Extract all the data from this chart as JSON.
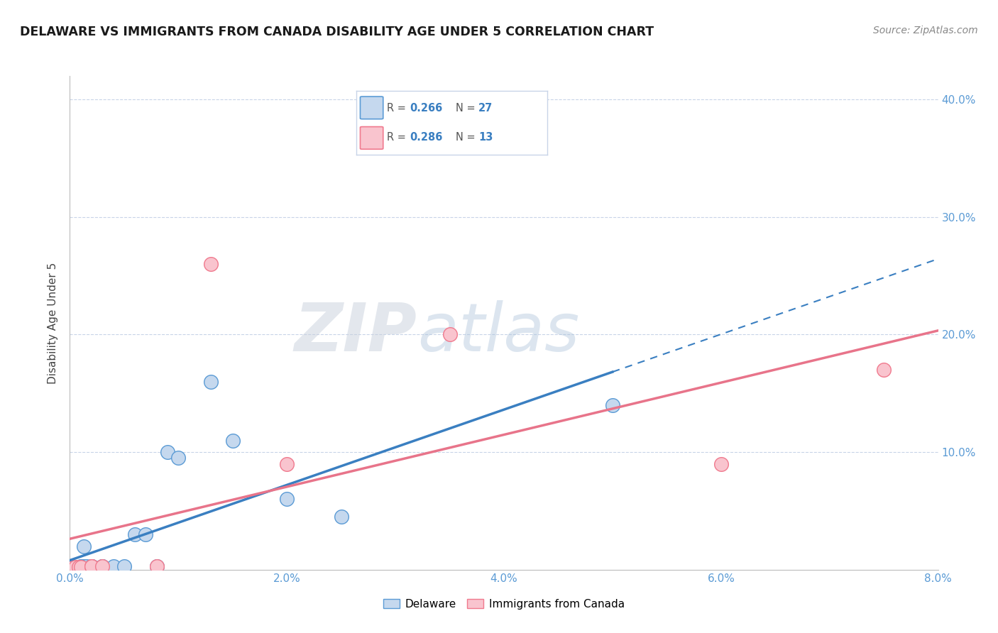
{
  "title": "DELAWARE VS IMMIGRANTS FROM CANADA DISABILITY AGE UNDER 5 CORRELATION CHART",
  "source": "Source: ZipAtlas.com",
  "ylabel": "Disability Age Under 5",
  "xmin": 0.0,
  "xmax": 0.08,
  "ymin": 0.0,
  "ymax": 0.42,
  "xtick_positions": [
    0.0,
    0.01,
    0.02,
    0.03,
    0.04,
    0.05,
    0.06,
    0.07,
    0.08
  ],
  "xtick_labels": [
    "0.0%",
    "",
    "2.0%",
    "",
    "4.0%",
    "",
    "6.0%",
    "",
    "8.0%"
  ],
  "ytick_positions": [
    0.0,
    0.1,
    0.2,
    0.3,
    0.4
  ],
  "ytick_labels": [
    "",
    "10.0%",
    "20.0%",
    "30.0%",
    "40.0%"
  ],
  "delaware_x": [
    0.0003,
    0.0005,
    0.0007,
    0.0008,
    0.001,
    0.001,
    0.0012,
    0.0013,
    0.0015,
    0.0015,
    0.002,
    0.002,
    0.002,
    0.003,
    0.003,
    0.004,
    0.005,
    0.006,
    0.007,
    0.008,
    0.009,
    0.01,
    0.013,
    0.015,
    0.02,
    0.025,
    0.05
  ],
  "delaware_y": [
    0.002,
    0.002,
    0.002,
    0.002,
    0.003,
    0.003,
    0.003,
    0.02,
    0.003,
    0.003,
    0.003,
    0.003,
    0.003,
    0.003,
    0.003,
    0.003,
    0.003,
    0.03,
    0.03,
    0.003,
    0.1,
    0.095,
    0.16,
    0.11,
    0.06,
    0.045,
    0.14
  ],
  "canada_x": [
    0.0003,
    0.0005,
    0.0008,
    0.001,
    0.002,
    0.002,
    0.003,
    0.008,
    0.013,
    0.02,
    0.035,
    0.06,
    0.075
  ],
  "canada_y": [
    0.002,
    0.002,
    0.002,
    0.002,
    0.003,
    0.003,
    0.003,
    0.003,
    0.26,
    0.09,
    0.2,
    0.09,
    0.17
  ],
  "delaware_color": "#c5d8ee",
  "canada_color": "#f9c4ce",
  "delaware_edge_color": "#5b9bd5",
  "canada_edge_color": "#f07a8e",
  "delaware_line_color": "#3a7fc1",
  "canada_line_color": "#e8748a",
  "delaware_R": 0.266,
  "delaware_N": 27,
  "canada_R": 0.286,
  "canada_N": 13,
  "watermark_zip": "ZIP",
  "watermark_atlas": "atlas",
  "background_color": "#ffffff",
  "grid_color": "#c8d4e8",
  "title_color": "#1a1a1a",
  "source_color": "#888888",
  "axis_label_color": "#444444",
  "tick_color": "#5b9bd5",
  "legend_border_color": "#c8d4e8"
}
